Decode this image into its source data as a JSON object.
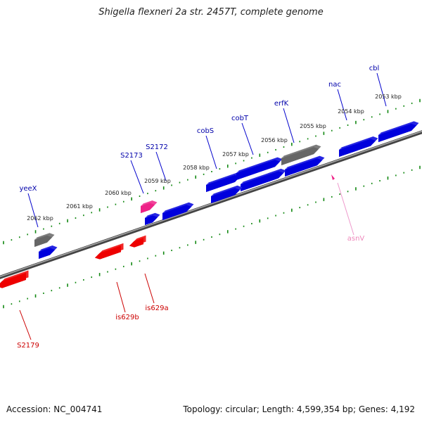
{
  "title": "Shigella flexneri 2a str. 2457T, complete genome",
  "footer": {
    "accession": "Accession: NC_004741",
    "stats": "Topology: circular; Length: 4,599,354 bp; Genes: 4,192"
  },
  "colors": {
    "forward_gene": "#0000dd",
    "reverse_gene": "#ee0000",
    "pseudo_gene": "#666666",
    "rna_gene": "#ee2288",
    "backbone": "#777777",
    "tick": "#118811",
    "forward_label": "#0000aa",
    "reverse_label": "#cc0000",
    "rna_label": "#ee88bb"
  },
  "scale_labels": [
    "2053 kbp",
    "2054 kbp",
    "2055 kbp",
    "2056 kbp",
    "2057 kbp",
    "2058 kbp",
    "2059 kbp",
    "2060 kbp",
    "2061 kbp",
    "2062 kbp"
  ],
  "gene_labels": [
    {
      "text": "cbl",
      "strand": "forward"
    },
    {
      "text": "nac",
      "strand": "forward"
    },
    {
      "text": "erfK",
      "strand": "forward"
    },
    {
      "text": "cobT",
      "strand": "forward"
    },
    {
      "text": "cobS",
      "strand": "forward"
    },
    {
      "text": "S2172",
      "strand": "forward"
    },
    {
      "text": "S2173",
      "strand": "forward"
    },
    {
      "text": "yeeX",
      "strand": "forward"
    },
    {
      "text": "asnV",
      "strand": "rna"
    },
    {
      "text": "is629a",
      "strand": "reverse"
    },
    {
      "text": "is629b",
      "strand": "reverse"
    },
    {
      "text": "S2179",
      "strand": "reverse"
    }
  ]
}
